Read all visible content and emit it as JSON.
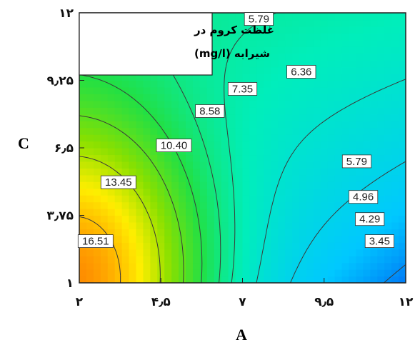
{
  "chart_data": {
    "type": "contour",
    "title_lines": [
      "غلظت کروم در",
      "شیرابه (mg/l)"
    ],
    "xlabel": "A",
    "ylabel": "C",
    "xlim": [
      2,
      12
    ],
    "ylim": [
      1,
      12
    ],
    "x_ticks": [
      2,
      4.5,
      7,
      9.5,
      12
    ],
    "x_tick_labels": [
      "۲",
      "۴٫۵",
      "۷",
      "۹٫۵",
      "۱۲"
    ],
    "y_ticks": [
      1,
      3.75,
      6.5,
      9.25,
      12
    ],
    "y_tick_labels": [
      "۱",
      "۳٫۷۵",
      "۶٫۵",
      "۹٫۲۵",
      "۱۲"
    ],
    "grid": false,
    "legend_position": "top-left",
    "colormap": [
      "#0033ee",
      "#00c8ff",
      "#00eebb",
      "#22e044",
      "#88e000",
      "#ffee00",
      "#ff9900",
      "#ee2200"
    ],
    "levels": [
      {
        "value": 16.51,
        "label": "16.51",
        "label_at": [
          2.5,
          2.7
        ]
      },
      {
        "value": 13.45,
        "label": "13.45",
        "label_at": [
          3.2,
          5.1
        ]
      },
      {
        "value": 10.4,
        "label": "10.40",
        "label_at": [
          4.9,
          6.6
        ]
      },
      {
        "value": 8.58,
        "label": "8.58",
        "label_at": [
          6.0,
          8.0
        ]
      },
      {
        "value": 7.35,
        "label": "7.35",
        "label_at": [
          7.0,
          8.9
        ]
      },
      {
        "value": 6.36,
        "label": "6.36",
        "label_at": [
          8.8,
          9.6
        ]
      },
      {
        "value": 5.79,
        "label": "5.79",
        "label_at": [
          7.5,
          11.75
        ]
      },
      {
        "value": 5.79,
        "label": "5.79",
        "label_at": [
          10.5,
          5.95
        ]
      },
      {
        "value": 4.96,
        "label": "4.96",
        "label_at": [
          10.7,
          4.5
        ]
      },
      {
        "value": 4.29,
        "label": "4.29",
        "label_at": [
          10.9,
          3.6
        ]
      },
      {
        "value": 3.45,
        "label": "3.45",
        "label_at": [
          11.2,
          2.7
        ]
      }
    ]
  }
}
